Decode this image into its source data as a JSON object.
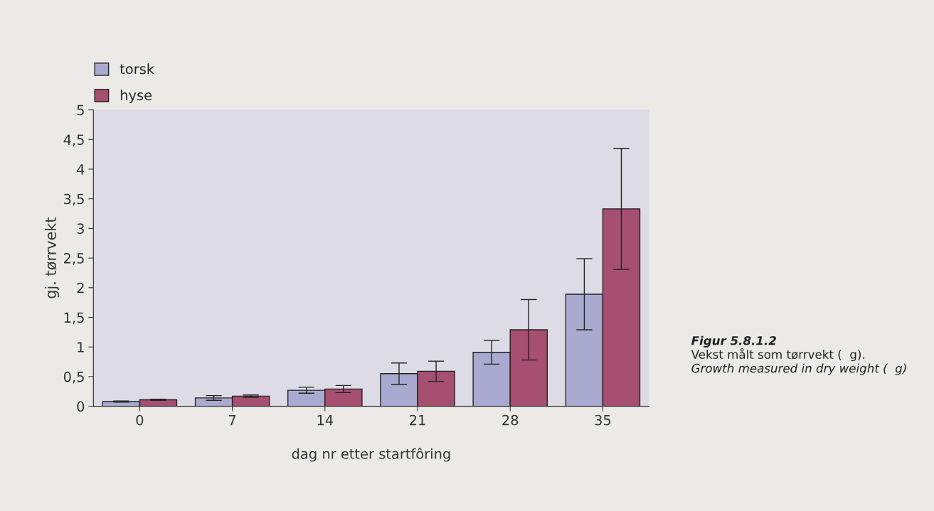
{
  "chart_data": {
    "type": "bar",
    "categories": [
      "0",
      "7",
      "14",
      "21",
      "28",
      "35"
    ],
    "series": [
      {
        "name": "torsk",
        "color": "#aaaad0",
        "values": [
          0.08,
          0.14,
          0.27,
          0.55,
          0.91,
          1.89
        ],
        "errors": [
          0.01,
          0.04,
          0.05,
          0.18,
          0.2,
          0.6
        ]
      },
      {
        "name": "hyse",
        "color": "#a64f70",
        "values": [
          0.11,
          0.17,
          0.29,
          0.59,
          1.29,
          3.33
        ],
        "errors": [
          0.01,
          0.02,
          0.06,
          0.17,
          0.51,
          1.02
        ]
      }
    ],
    "xlabel": "dag nr etter startfôring",
    "ylabel": "gj. tørrvekt",
    "ylim": [
      0,
      5
    ],
    "yticks": [
      0,
      {
        "value": 0.5,
        "label": "0,5"
      },
      1,
      {
        "value": 1.5,
        "label": "1,5"
      },
      2,
      {
        "value": 2.5,
        "label": "2,5"
      },
      3,
      {
        "value": 3.5,
        "label": "3,5"
      },
      4,
      {
        "value": 4.5,
        "label": "4,5"
      },
      5
    ],
    "legend": "top left",
    "grid": false,
    "annotations": [
      "Figur 5.8.1.2",
      "Vekst målt som tørrvekt (  g).",
      "Growth measured in dry weight (  g)"
    ]
  }
}
